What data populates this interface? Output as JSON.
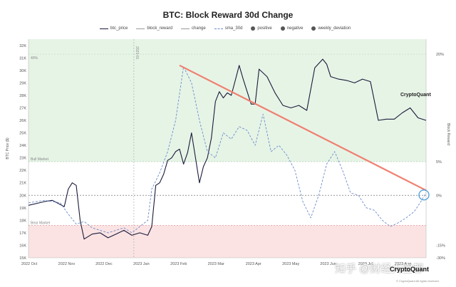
{
  "chart_data": {
    "type": "line",
    "title": "BTC: Block Reward 30d Change",
    "ylabel_left": "BTC Price ($)",
    "ylabel_right": "Block Reward",
    "y_left_ticks": [
      "32K",
      "31K",
      "30K",
      "29K",
      "28K",
      "27K",
      "26K",
      "25K",
      "24K",
      "23K",
      "22K",
      "21K",
      "20K",
      "19K",
      "18K",
      "17K",
      "16K",
      "15K"
    ],
    "y_right_ticks": [
      "20%",
      "5%",
      "0%",
      "-15%",
      "-30%"
    ],
    "x_ticks": [
      "2022 Oct",
      "2022 Nov",
      "2022 Dec",
      "2023 Jan",
      "2023 Feb",
      "2023 Mar",
      "2023 Apr",
      "2023 May",
      "2023 Jun",
      "2023 Jul",
      "2023 Aug"
    ],
    "legend": [
      "btc_price",
      "block_reward",
      "change",
      "sma_30d",
      "positive",
      "negative",
      "weekly_deviation"
    ],
    "zones": [
      {
        "label": "40%",
        "band": "positive",
        "color": "#e6f4e6"
      },
      {
        "label": "Bull Market",
        "band": "neutral",
        "color": "#ffffff"
      },
      {
        "label": "Bear Market",
        "band": "negative",
        "color": "#fbe3e3"
      }
    ],
    "vline_label": "2023-01",
    "series": [
      {
        "name": "btc_price",
        "style": "solid",
        "color": "#1a1a3a",
        "x": [
          0,
          0.04,
          0.06,
          0.09,
          0.1,
          0.11,
          0.12,
          0.13,
          0.14,
          0.16,
          0.18,
          0.2,
          0.22,
          0.24,
          0.26,
          0.28,
          0.3,
          0.31,
          0.32,
          0.33,
          0.34,
          0.35,
          0.36,
          0.37,
          0.38,
          0.39,
          0.4,
          0.41,
          0.42,
          0.43,
          0.44,
          0.45,
          0.46,
          0.47,
          0.48,
          0.49,
          0.5,
          0.51,
          0.52,
          0.53,
          0.54,
          0.55,
          0.56,
          0.57,
          0.58,
          0.6,
          0.62,
          0.64,
          0.66,
          0.68,
          0.7,
          0.72,
          0.74,
          0.75,
          0.76,
          0.78,
          0.8,
          0.82,
          0.84,
          0.86,
          0.88,
          0.9,
          0.92,
          0.94,
          0.96,
          0.98,
          1.0
        ],
        "values": [
          19.2,
          19.5,
          19.6,
          19.1,
          20.5,
          21.0,
          20.8,
          18.0,
          16.5,
          16.9,
          17.0,
          16.6,
          16.9,
          17.2,
          16.8,
          17.0,
          16.8,
          17.5,
          20.8,
          21.0,
          21.7,
          22.8,
          23.0,
          23.5,
          23.7,
          22.5,
          23.4,
          25.0,
          23.0,
          21.0,
          22.3,
          23.0,
          24.6,
          27.5,
          28.3,
          27.8,
          28.2,
          28.0,
          29.2,
          30.4,
          29.3,
          28.3,
          27.3,
          27.3,
          30.1,
          29.5,
          28.2,
          27.2,
          27.0,
          27.2,
          26.8,
          30.2,
          30.9,
          30.5,
          29.5,
          29.3,
          29.2,
          29.0,
          29.3,
          29.1,
          26.0,
          26.1,
          26.1,
          26.6,
          27.0,
          26.2,
          26.0
        ]
      },
      {
        "name": "sma_30d",
        "style": "dashed",
        "color": "#6b8ccb",
        "x": [
          0,
          0.04,
          0.08,
          0.1,
          0.12,
          0.14,
          0.16,
          0.2,
          0.24,
          0.26,
          0.28,
          0.3,
          0.31,
          0.33,
          0.35,
          0.37,
          0.39,
          0.41,
          0.43,
          0.45,
          0.47,
          0.49,
          0.51,
          0.53,
          0.55,
          0.57,
          0.59,
          0.61,
          0.63,
          0.65,
          0.67,
          0.69,
          0.71,
          0.73,
          0.75,
          0.77,
          0.79,
          0.81,
          0.83,
          0.85,
          0.87,
          0.89,
          0.91,
          0.93,
          0.95,
          0.97,
          0.985,
          1.0
        ],
        "values": [
          19.4,
          19.6,
          19.4,
          18.5,
          17.7,
          17.9,
          17.4,
          17.0,
          17.4,
          17.0,
          17.5,
          18.0,
          20.5,
          21.8,
          23.5,
          26.0,
          30.3,
          29.0,
          26.0,
          23.5,
          23.0,
          25.0,
          24.5,
          25.5,
          25.2,
          24.0,
          26.5,
          23.5,
          24.0,
          23.2,
          22.0,
          19.5,
          18.2,
          20.0,
          22.5,
          23.5,
          22.0,
          20.2,
          20.0,
          19.0,
          18.8,
          18.0,
          17.5,
          17.8,
          18.2,
          18.7,
          19.4,
          20.2
        ]
      },
      {
        "name": "trend",
        "style": "solid",
        "color": "#f08070",
        "x": [
          0.38,
          1.0
        ],
        "values": [
          30.4,
          20.4
        ]
      }
    ],
    "ylim": [
      15,
      32.5
    ]
  },
  "brand": {
    "name": "CryptoQuant",
    "watermark": "知乎 @财经大宝都",
    "footer": "© CryptoQuant All rights reserved."
  }
}
